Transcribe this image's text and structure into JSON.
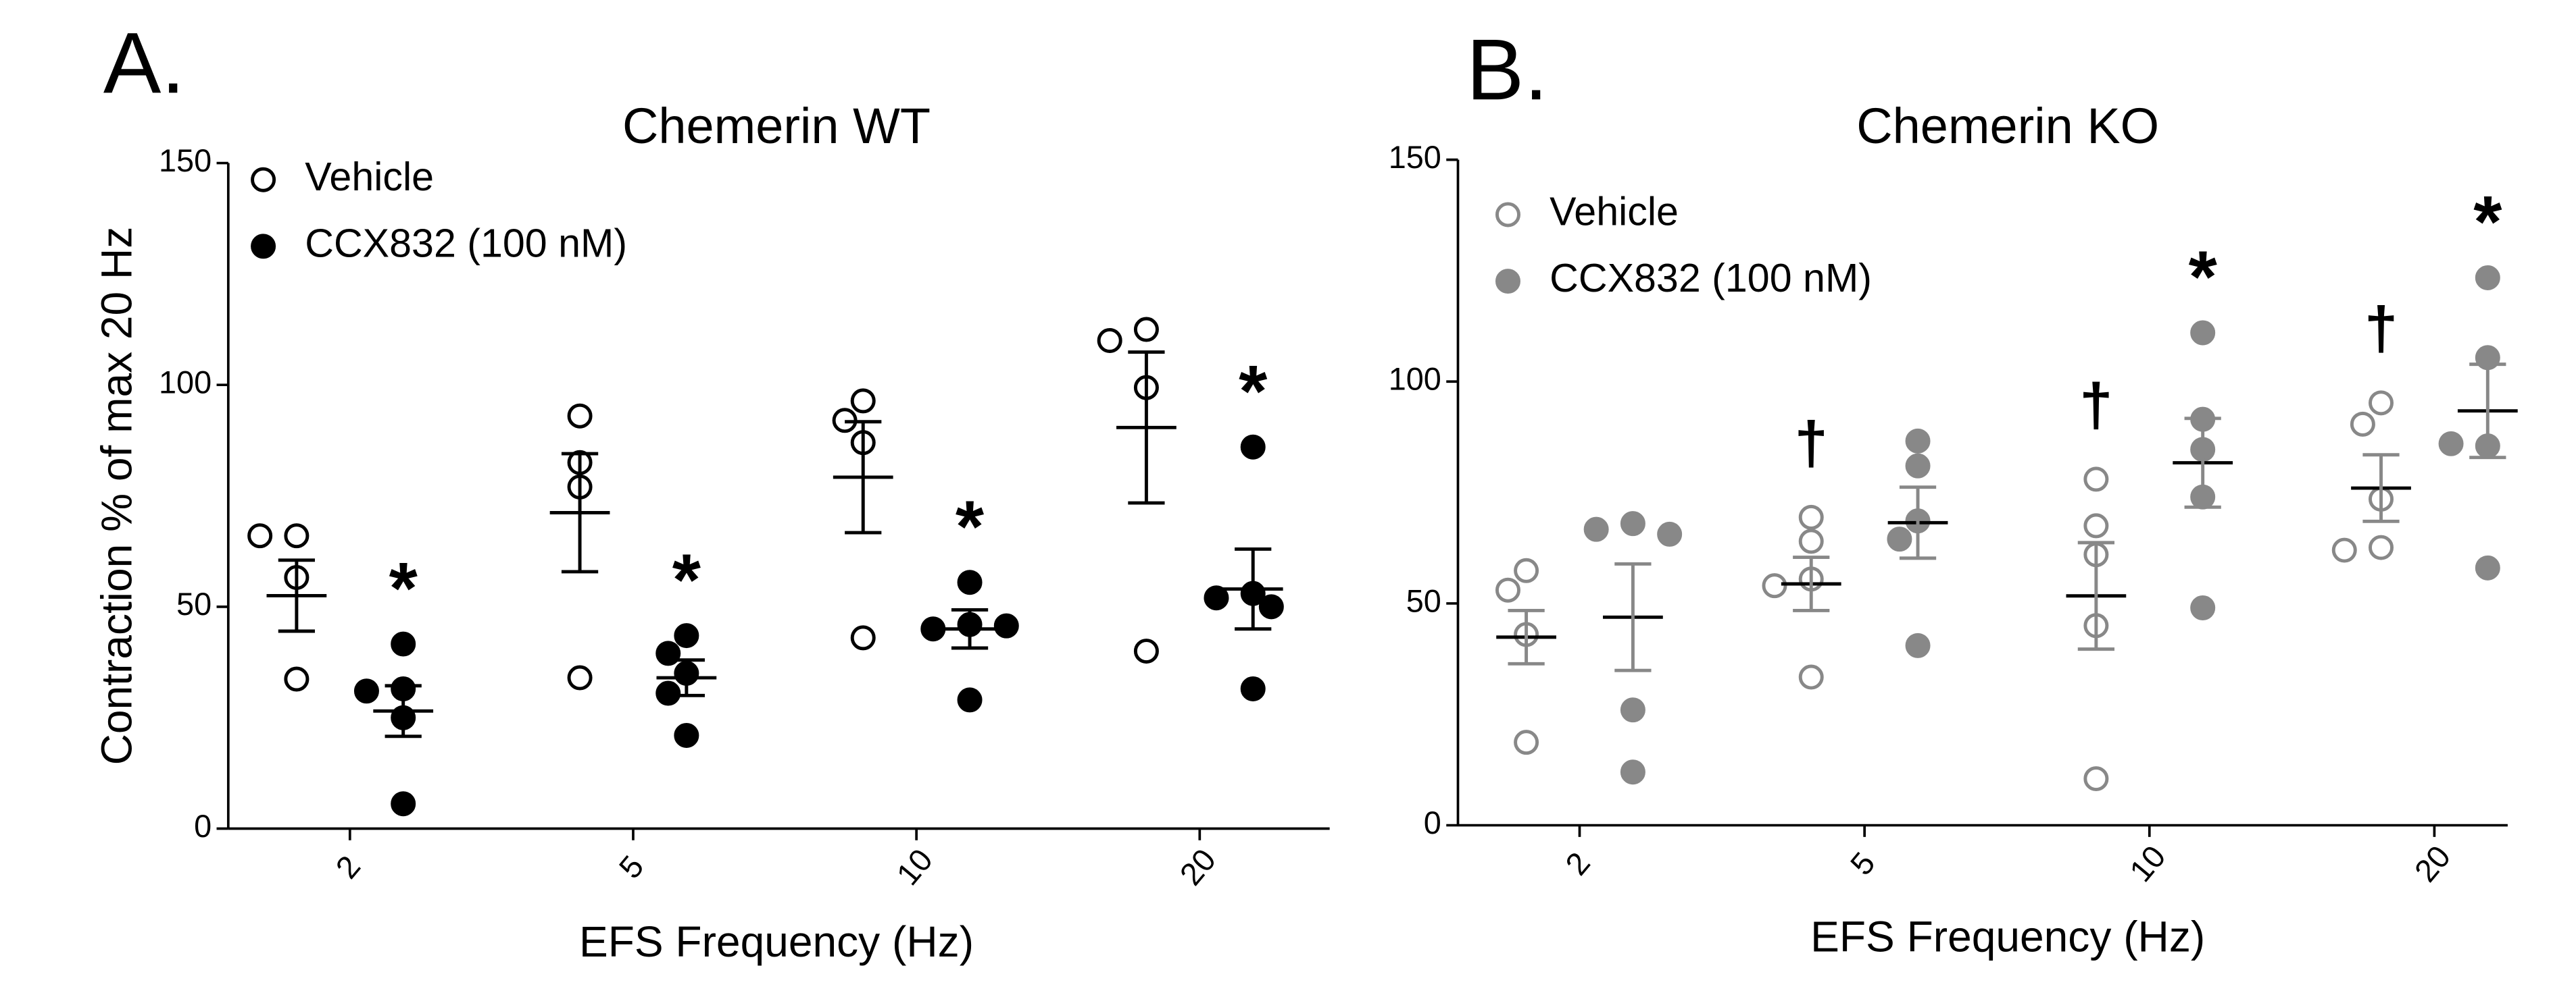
{
  "chart_data": [
    {
      "type": "scatter",
      "panel_label": "A.",
      "title": "Chemerin WT",
      "xlabel": "EFS Frequency (Hz)",
      "ylabel": "Contraction % of max 20 Hz",
      "categories": [
        "2",
        "5",
        "10",
        "20"
      ],
      "ylim": [
        0,
        150
      ],
      "yticks": [
        0,
        50,
        100,
        150
      ],
      "series": [
        {
          "name": "Vehicle",
          "color": "#000000",
          "filled": false,
          "points": [
            [
              66,
              66,
              56.6,
              33.7
            ],
            [
              93,
              82.5,
              77,
              34
            ],
            [
              96.4,
              92,
              87,
              43
            ],
            [
              112.5,
              110,
              99.4,
              40
            ]
          ],
          "mean": [
            52.5,
            71.2,
            79.2,
            90.4
          ],
          "sem": [
            8,
            13.3,
            12.5,
            17
          ],
          "annotations": [
            null,
            null,
            null,
            null
          ]
        },
        {
          "name": "CCX832 (100 nM)",
          "color": "#000000",
          "filled": true,
          "points": [
            [
              41.6,
              31.5,
              31,
              25,
              5.6
            ],
            [
              43.5,
              39.5,
              35,
              30.5,
              21
            ],
            [
              55.5,
              46,
              45,
              45.7,
              29
            ],
            [
              86,
              53,
              52,
              50,
              31.5
            ]
          ],
          "mean": [
            26.5,
            34,
            45,
            54
          ],
          "sem": [
            5.7,
            4,
            4.3,
            9
          ],
          "annotations": [
            "*",
            "*",
            "*",
            "*"
          ]
        }
      ]
    },
    {
      "type": "scatter",
      "panel_label": "B.",
      "title": "Chemerin KO",
      "xlabel": "EFS Frequency (Hz)",
      "categories": [
        "2",
        "5",
        "10",
        "20"
      ],
      "ylim": [
        0,
        150
      ],
      "yticks": [
        0,
        50,
        100,
        150
      ],
      "series": [
        {
          "name": "Vehicle",
          "color": "#888888",
          "filled": false,
          "points": [
            [
              57.4,
              53,
              43,
              18.7
            ],
            [
              69.4,
              64,
              55.5,
              54,
              33.4
            ],
            [
              78,
              67.5,
              61,
              45,
              10.5
            ],
            [
              95.2,
              90.4,
              73.5,
              62.6,
              62
            ]
          ],
          "mean": [
            42.4,
            54.4,
            51.7,
            76
          ],
          "sem": [
            6,
            6,
            12,
            7.5
          ],
          "annotations": [
            null,
            "†",
            "†",
            "†"
          ]
        },
        {
          "name": "CCX832 (100 nM)",
          "color": "#888888",
          "filled": true,
          "points": [
            [
              68,
              66.7,
              65.6,
              26,
              12
            ],
            [
              86.6,
              81,
              68.6,
              64.5,
              40.5
            ],
            [
              111,
              91.5,
              84.7,
              74,
              49
            ],
            [
              123.4,
              105.4,
              85.5,
              86,
              58
            ]
          ],
          "mean": [
            46.9,
            68.2,
            81.7,
            93.4
          ],
          "sem": [
            12,
            8,
            10,
            10.5
          ],
          "annotations": [
            null,
            null,
            "*",
            "*"
          ]
        }
      ]
    }
  ]
}
